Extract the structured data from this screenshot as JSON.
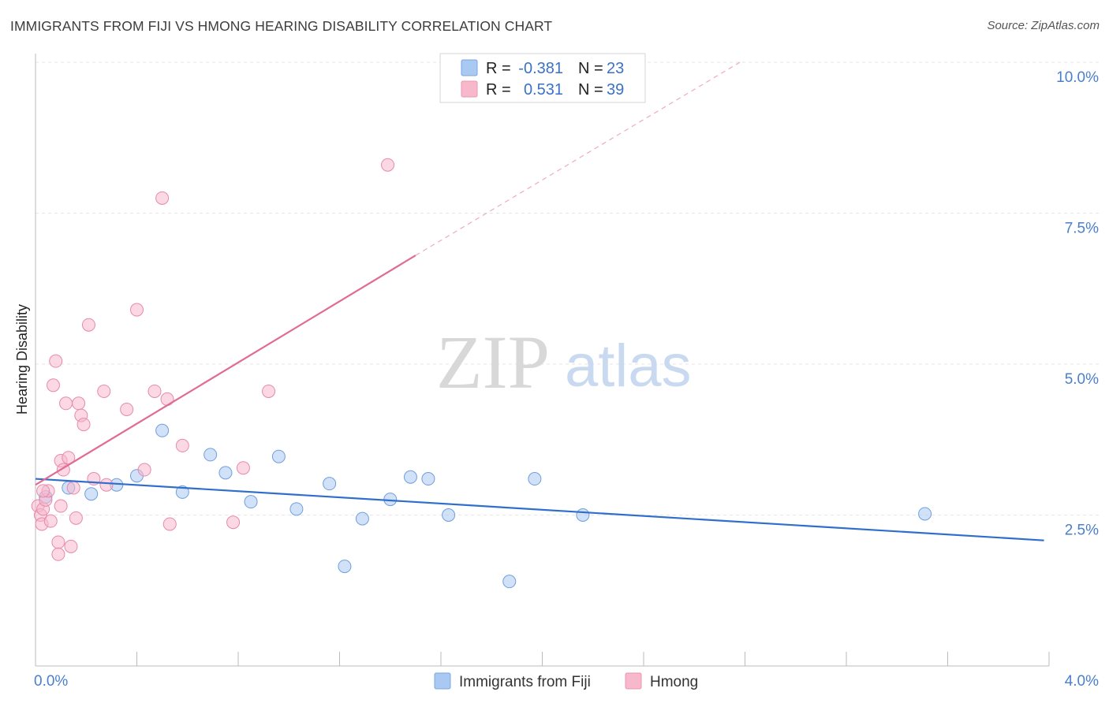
{
  "title": "IMMIGRANTS FROM FIJI VS HMONG HEARING DISABILITY CORRELATION CHART",
  "source": "Source: ZipAtlas.com",
  "watermark": {
    "zip": "ZIP",
    "atlas": "atlas"
  },
  "legend_box": {
    "rows": [
      {
        "r_label": "R =",
        "r_value": "-0.381",
        "n_label": "N =",
        "n_value": "23",
        "color": "#a9c8f2"
      },
      {
        "r_label": "R =",
        "r_value": "0.531",
        "n_label": "N =",
        "n_value": "39",
        "color": "#f7b8cc"
      }
    ]
  },
  "colors": {
    "fiji_fill": "#a9c8f2",
    "fiji_line": "#2f6fcb",
    "hmong_fill": "#f7b8cc",
    "hmong_line": "#e06b93",
    "tick_text": "#4a7fcb",
    "grid": "#e6e6e6"
  },
  "chart_data": {
    "type": "scatter",
    "xlabel": "",
    "ylabel": "Hearing Disability",
    "xlim": [
      0.0,
      4.0
    ],
    "ylim": [
      0.0,
      10.0
    ],
    "x_tick_labels": [
      "0.0%",
      "4.0%"
    ],
    "y_ticks": [
      2.5,
      5.0,
      7.5,
      10.0
    ],
    "y_tick_labels": [
      "2.5%",
      "5.0%",
      "7.5%",
      "10.0%"
    ],
    "grid": "horizontal dashed",
    "legend_position": "bottom",
    "series": [
      {
        "name": "Immigrants from Fiji",
        "color": "#a9c8f2",
        "points": [
          [
            0.04,
            2.8
          ],
          [
            0.13,
            2.95
          ],
          [
            0.22,
            2.85
          ],
          [
            0.32,
            3.0
          ],
          [
            0.4,
            3.15
          ],
          [
            0.5,
            3.9
          ],
          [
            0.58,
            2.88
          ],
          [
            0.69,
            3.5
          ],
          [
            0.75,
            3.2
          ],
          [
            0.85,
            2.72
          ],
          [
            0.96,
            3.47
          ],
          [
            1.03,
            2.6
          ],
          [
            1.16,
            3.02
          ],
          [
            1.29,
            2.44
          ],
          [
            1.22,
            1.65
          ],
          [
            1.4,
            2.76
          ],
          [
            1.48,
            3.13
          ],
          [
            1.55,
            3.1
          ],
          [
            1.63,
            2.5
          ],
          [
            1.87,
            1.4
          ],
          [
            1.97,
            3.1
          ],
          [
            2.16,
            2.5
          ],
          [
            3.51,
            2.52
          ]
        ],
        "trend": {
          "x": [
            0.0,
            3.98
          ],
          "y": [
            3.1,
            2.08
          ]
        }
      },
      {
        "name": "Hmong",
        "color": "#f7b8cc",
        "points": [
          [
            0.01,
            2.65
          ],
          [
            0.02,
            2.5
          ],
          [
            0.025,
            2.35
          ],
          [
            0.03,
            2.6
          ],
          [
            0.04,
            2.75
          ],
          [
            0.05,
            2.9
          ],
          [
            0.06,
            2.4
          ],
          [
            0.07,
            4.65
          ],
          [
            0.08,
            5.05
          ],
          [
            0.09,
            2.05
          ],
          [
            0.09,
            1.85
          ],
          [
            0.1,
            3.4
          ],
          [
            0.1,
            2.65
          ],
          [
            0.11,
            3.25
          ],
          [
            0.12,
            4.35
          ],
          [
            0.13,
            3.45
          ],
          [
            0.14,
            1.98
          ],
          [
            0.15,
            2.95
          ],
          [
            0.16,
            2.45
          ],
          [
            0.17,
            4.35
          ],
          [
            0.18,
            4.15
          ],
          [
            0.19,
            4.0
          ],
          [
            0.21,
            5.65
          ],
          [
            0.23,
            3.1
          ],
          [
            0.27,
            4.55
          ],
          [
            0.28,
            3.0
          ],
          [
            0.36,
            4.25
          ],
          [
            0.4,
            5.9
          ],
          [
            0.43,
            3.25
          ],
          [
            0.47,
            4.55
          ],
          [
            0.5,
            7.75
          ],
          [
            0.52,
            4.42
          ],
          [
            0.53,
            2.35
          ],
          [
            0.58,
            3.65
          ],
          [
            0.78,
            2.38
          ],
          [
            0.82,
            3.28
          ],
          [
            0.92,
            4.55
          ],
          [
            1.39,
            8.3
          ],
          [
            0.03,
            2.9
          ]
        ],
        "trend": {
          "x": [
            0.0,
            1.5
          ],
          "y": [
            3.0,
            6.8
          ]
        },
        "trend_extension": {
          "x": [
            1.5,
            2.78
          ],
          "y": [
            6.8,
            10.0
          ]
        }
      }
    ]
  }
}
